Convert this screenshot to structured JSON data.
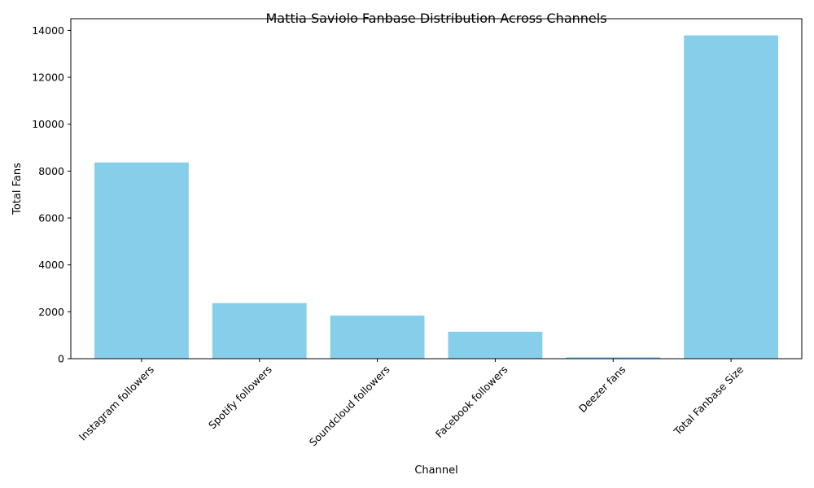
{
  "chart_data": {
    "type": "bar",
    "title": "Mattia Saviolo Fanbase Distribution Across Channels",
    "xlabel": "Channel",
    "ylabel": "Total Fans",
    "categories": [
      "Instagram followers",
      "Spotify followers",
      "Soundcloud followers",
      "Facebook followers",
      "Deezer fans",
      "Total Fanbase Size"
    ],
    "values": [
      8370,
      2370,
      1840,
      1150,
      60,
      13790
    ],
    "ylim": [
      0,
      14500
    ],
    "yticks": [
      0,
      2000,
      4000,
      6000,
      8000,
      10000,
      12000,
      14000
    ],
    "bar_color": "#87CEEB",
    "grid": false,
    "legend": "none"
  }
}
